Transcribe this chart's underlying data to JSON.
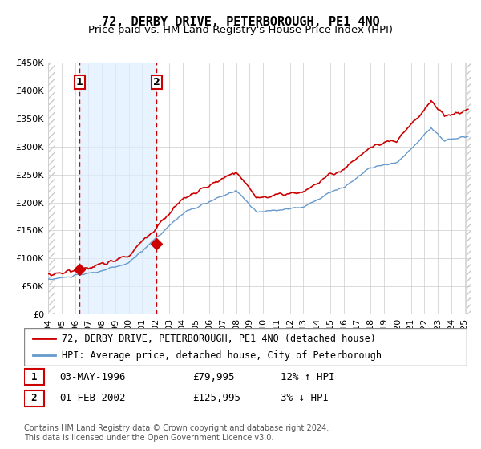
{
  "title": "72, DERBY DRIVE, PETERBOROUGH, PE1 4NQ",
  "subtitle": "Price paid vs. HM Land Registry's House Price Index (HPI)",
  "xlabel": "",
  "ylabel": "",
  "ylim": [
    0,
    450000
  ],
  "yticks": [
    0,
    50000,
    100000,
    150000,
    200000,
    250000,
    300000,
    350000,
    400000,
    450000
  ],
  "ytick_labels": [
    "£0",
    "£50K",
    "£100K",
    "£150K",
    "£200K",
    "£250K",
    "£300K",
    "£350K",
    "£400K",
    "£450K"
  ],
  "xlim_start": 1994.0,
  "xlim_end": 2025.5,
  "xtick_years": [
    1994,
    1995,
    1996,
    1997,
    1998,
    1999,
    2000,
    2001,
    2002,
    2003,
    2004,
    2005,
    2006,
    2007,
    2008,
    2009,
    2010,
    2011,
    2012,
    2013,
    2014,
    2015,
    2016,
    2017,
    2018,
    2019,
    2020,
    2021,
    2022,
    2023,
    2024,
    2025
  ],
  "sale1_x": 1996.35,
  "sale1_y": 79995,
  "sale1_label": "1",
  "sale1_date": "03-MAY-1996",
  "sale1_price": "£79,995",
  "sale1_hpi": "12% ↑ HPI",
  "sale2_x": 2002.08,
  "sale2_y": 125995,
  "sale2_label": "2",
  "sale2_date": "01-FEB-2002",
  "sale2_price": "£125,995",
  "sale2_hpi": "3% ↓ HPI",
  "vline1_x": 1996.35,
  "vline2_x": 2002.08,
  "shade_start": 1996.35,
  "shade_end": 2002.08,
  "red_line_color": "#cc0000",
  "blue_line_color": "#6699cc",
  "shade_color": "#ddeeff",
  "hatch_color": "#aaaaaa",
  "legend_label1": "72, DERBY DRIVE, PETERBOROUGH, PE1 4NQ (detached house)",
  "legend_label2": "HPI: Average price, detached house, City of Peterborough",
  "footer": "Contains HM Land Registry data © Crown copyright and database right 2024.\nThis data is licensed under the Open Government Licence v3.0.",
  "title_fontsize": 11,
  "subtitle_fontsize": 9.5,
  "tick_fontsize": 8,
  "legend_fontsize": 8.5,
  "footer_fontsize": 7
}
